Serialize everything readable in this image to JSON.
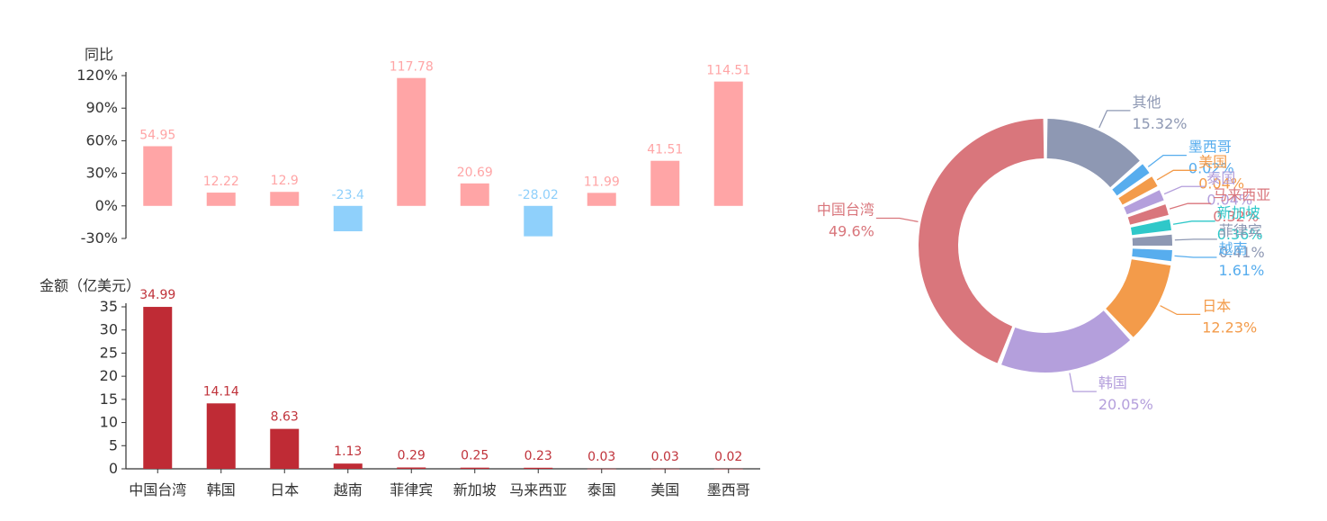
{
  "chart_data": [
    {
      "type": "bar",
      "ylabel": "同比",
      "categories": [
        "中国台湾",
        "韩国",
        "日本",
        "越南",
        "菲律宾",
        "新加坡",
        "马来西亚",
        "泰国",
        "美国",
        "墨西哥"
      ],
      "values": [
        54.95,
        12.22,
        12.9,
        -23.4,
        117.78,
        20.69,
        -28.02,
        11.99,
        41.51,
        114.51
      ],
      "value_labels": [
        "54.95",
        "12.22",
        "12.9",
        "-23.4",
        "117.78",
        "20.69",
        "-28.02",
        "11.99",
        "41.51",
        "114.51"
      ],
      "y_ticks": [
        120,
        90,
        60,
        30,
        0,
        -30
      ],
      "y_tick_labels": [
        "120%",
        "90%",
        "60%",
        "30%",
        "0%",
        "-30%"
      ],
      "ylim": [
        -30,
        120
      ],
      "colors": {
        "positive": "#ffa5a6",
        "negative": "#8fd0fb"
      }
    },
    {
      "type": "bar",
      "ylabel": "金额（亿美元）",
      "categories": [
        "中国台湾",
        "韩国",
        "日本",
        "越南",
        "菲律宾",
        "新加坡",
        "马来西亚",
        "泰国",
        "美国",
        "墨西哥"
      ],
      "values": [
        34.99,
        14.14,
        8.63,
        1.13,
        0.29,
        0.25,
        0.23,
        0.03,
        0.03,
        0.02
      ],
      "value_labels": [
        "34.99",
        "14.14",
        "8.63",
        "1.13",
        "0.29",
        "0.25",
        "0.23",
        "0.03",
        "0.03",
        "0.02"
      ],
      "y_ticks": [
        35,
        30,
        25,
        20,
        15,
        10,
        5,
        0
      ],
      "y_tick_labels": [
        "35",
        "30",
        "25",
        "20",
        "15",
        "10",
        "5",
        "0"
      ],
      "ylim": [
        0,
        35
      ],
      "colors": {
        "bar": "#bf2b35",
        "label": "#c0333b"
      }
    },
    {
      "type": "pie",
      "donut": true,
      "slices": [
        {
          "name": "其他",
          "value": 15.32,
          "label": "15.32%",
          "color": "#8e98b3"
        },
        {
          "name": "墨西哥",
          "value": 0.02,
          "label": "0.02%",
          "color": "#57adee"
        },
        {
          "name": "美国",
          "value": 0.04,
          "label": "0.04%",
          "color": "#f39b4a"
        },
        {
          "name": "泰国",
          "value": 0.04,
          "label": "0.04%",
          "color": "#b49fdc"
        },
        {
          "name": "马来西亚",
          "value": 0.32,
          "label": "0.32%",
          "color": "#d9767c"
        },
        {
          "name": "新加坡",
          "value": 0.36,
          "label": "0.36%",
          "color": "#2fc8c9"
        },
        {
          "name": "菲律宾",
          "value": 0.41,
          "label": "0.41%",
          "color": "#8e98b3"
        },
        {
          "name": "越南",
          "value": 1.61,
          "label": "1.61%",
          "color": "#57adee"
        },
        {
          "name": "日本",
          "value": 12.23,
          "label": "12.23%",
          "color": "#f39b4a"
        },
        {
          "name": "韩国",
          "value": 20.05,
          "label": "20.05%",
          "color": "#b49fdc"
        },
        {
          "name": "中国台湾",
          "value": 49.6,
          "label": "49.6%",
          "color": "#d9767c"
        }
      ]
    }
  ]
}
